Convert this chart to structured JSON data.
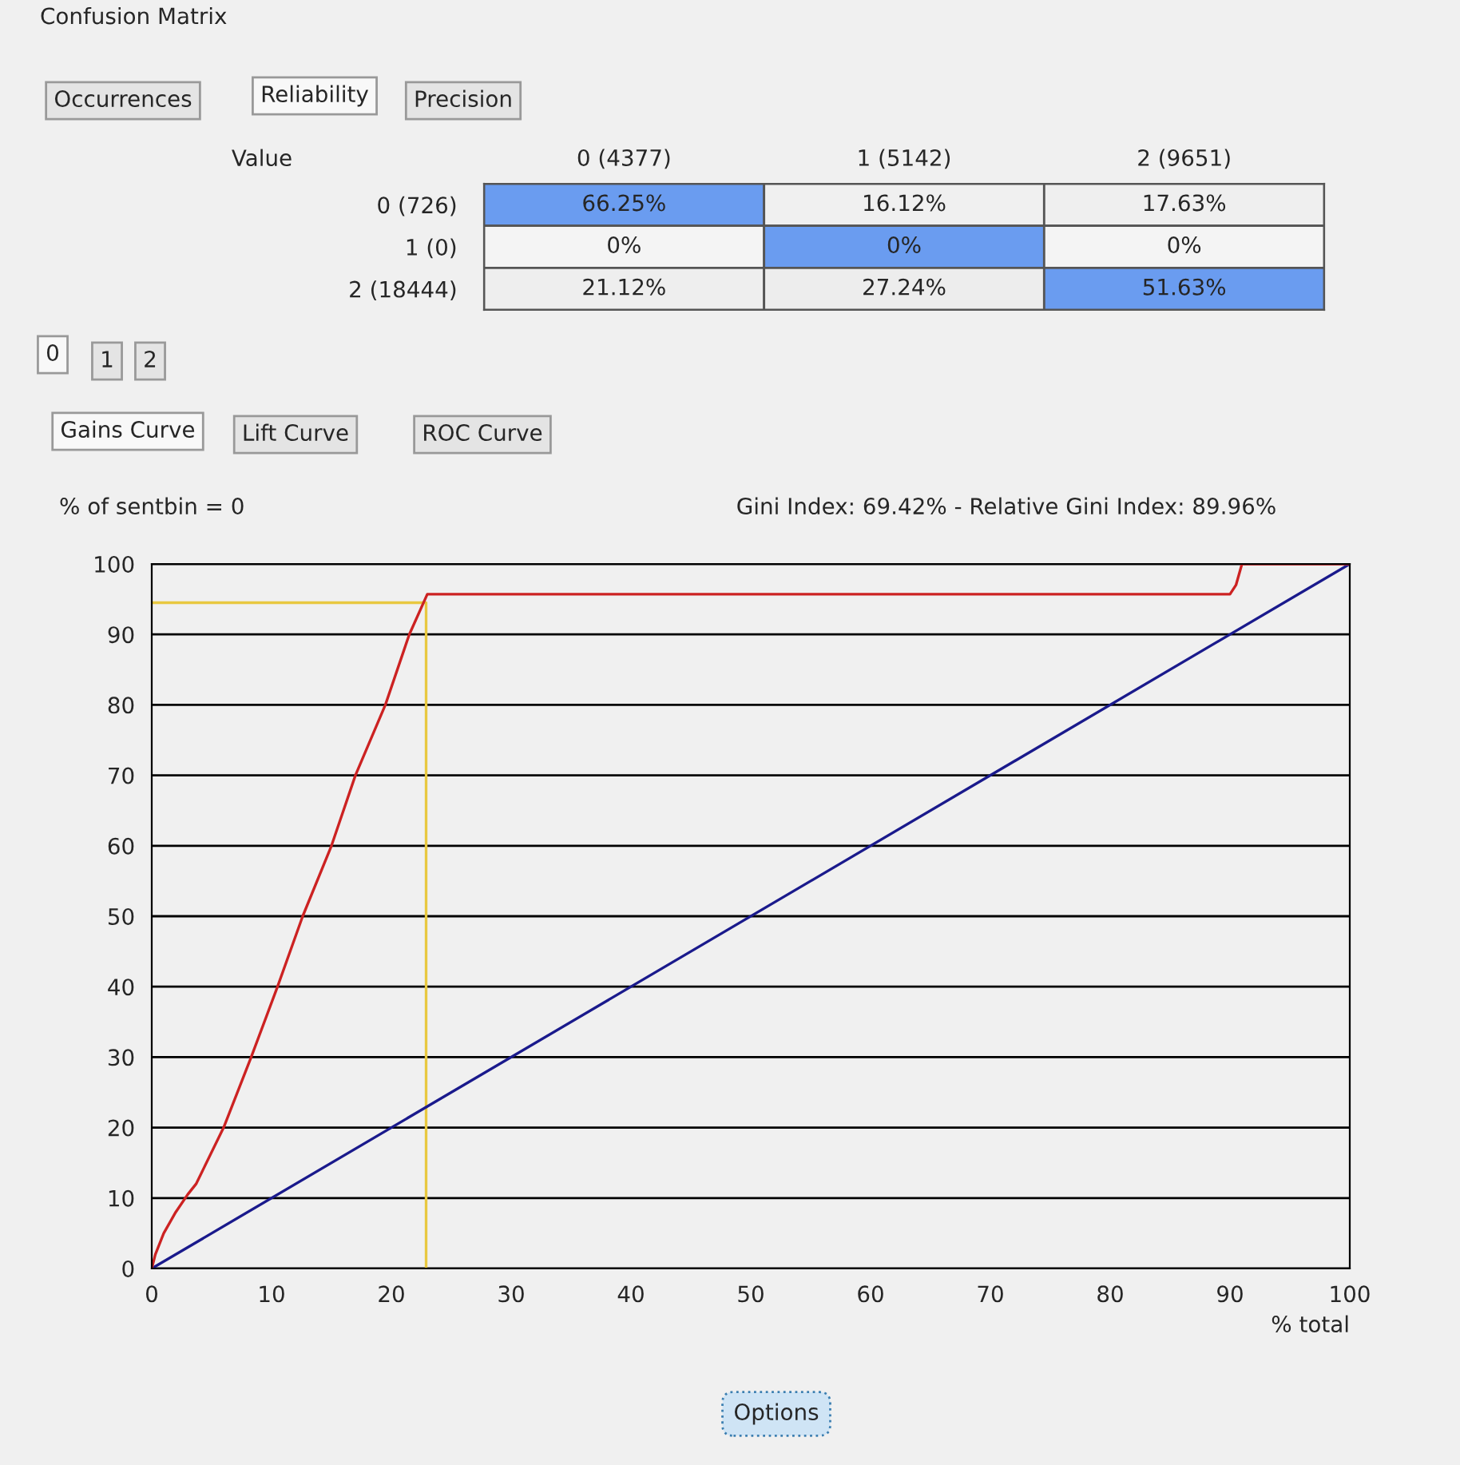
{
  "chart_data": [
    {
      "type": "heatmap",
      "title": "Confusion Matrix",
      "categories": [
        "0 (4377)",
        "1 (5142)",
        "2 (9651)"
      ],
      "y_categories": [
        "0 (726)",
        "1 (0)",
        "2 (18444)"
      ],
      "cells": [
        [
          66.25,
          16.12,
          17.63
        ],
        [
          0,
          0,
          0
        ],
        [
          21.12,
          27.24,
          51.63
        ]
      ],
      "cell_labels": [
        [
          "66.25%",
          "16.12%",
          "17.63%"
        ],
        [
          "0%",
          "0%",
          "0%"
        ],
        [
          "21.12%",
          "27.24%",
          "51.63%"
        ]
      ],
      "colors": [
        [
          "#6a9cf0",
          null,
          null
        ],
        [
          null,
          "#6a9cf0",
          null
        ],
        [
          null,
          null,
          "#6a9cf0"
        ]
      ],
      "annotations": [
        "Value",
        "Occurrences",
        "Reliability",
        "Precision"
      ]
    },
    {
      "type": "line",
      "ylabel": "% of sentbin = 0",
      "xlabel": "% total",
      "series": [
        {
          "color": "#e8c840",
          "x": [
            0,
            22.9,
            22.9
          ],
          "values": [
            94.5,
            94.5,
            0
          ]
        },
        {
          "color": "#1a1a8c",
          "x": [
            0,
            100
          ],
          "values": [
            0,
            100
          ]
        },
        {
          "color": "#cc2222",
          "x": [
            0,
            0.3,
            1,
            2,
            3,
            3.7,
            6,
            8.3,
            10.5,
            12.6,
            15,
            17,
            19.5,
            21.5,
            23,
            90,
            90.5,
            91,
            100
          ],
          "values": [
            0,
            2,
            5,
            8,
            10.5,
            12,
            20,
            30,
            40,
            50,
            60,
            70,
            80,
            90,
            95.7,
            95.7,
            97,
            100,
            100
          ]
        }
      ],
      "xlim": [
        0,
        100
      ],
      "ylim": [
        0,
        100
      ],
      "xticks": [
        0,
        10,
        20,
        30,
        40,
        50,
        60,
        70,
        80,
        90,
        100
      ],
      "yticks": [
        0,
        10,
        20,
        30,
        40,
        50,
        60,
        70,
        80,
        90,
        100
      ],
      "grid": "y",
      "annotations": [
        "0",
        "1",
        "2",
        "Gains Curve",
        "Lift Curve",
        "ROC Curve",
        "Gini Index: 69.42% - Relative Gini Index: 89.96%",
        "Options"
      ]
    }
  ]
}
